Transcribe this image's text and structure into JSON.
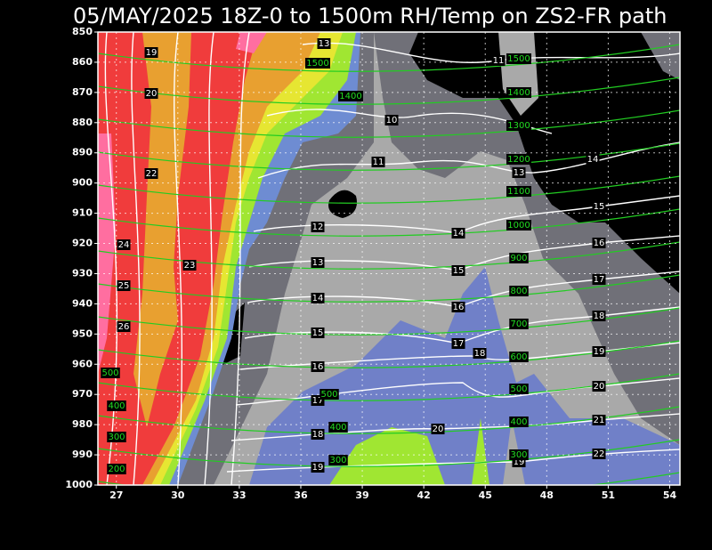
{
  "chart_data": {
    "type": "contour",
    "title": "05/MAY/2025 18Z-0 to 1500m RH/Temp on ZS2-FR path",
    "xlim": [
      26.1,
      54.5
    ],
    "xticks": [
      27,
      30,
      33,
      36,
      39,
      42,
      45,
      48,
      51,
      54
    ],
    "ylim": [
      1000,
      850
    ],
    "yticks": [
      850,
      860,
      870,
      880,
      890,
      900,
      910,
      920,
      930,
      940,
      950,
      960,
      970,
      980,
      990,
      1000
    ],
    "grid": true,
    "temperature_labels": [
      "19",
      "13",
      "11",
      "20",
      "10",
      "11",
      "13",
      "14",
      "22",
      "15",
      "12",
      "14",
      "16",
      "24",
      "13",
      "23",
      "15",
      "25",
      "17",
      "14",
      "16",
      "18",
      "26",
      "15",
      "17",
      "18",
      "19",
      "16",
      "20",
      "17",
      "21",
      "20",
      "18",
      "22",
      "19",
      "19"
    ],
    "height_labels": [
      "1500",
      "1500",
      "1400",
      "1400",
      "1300",
      "1200",
      "1100",
      "1000",
      "900",
      "800",
      "700",
      "600",
      "500",
      "400",
      "300",
      "500",
      "400",
      "300",
      "200",
      "500",
      "400",
      "300"
    ]
  }
}
